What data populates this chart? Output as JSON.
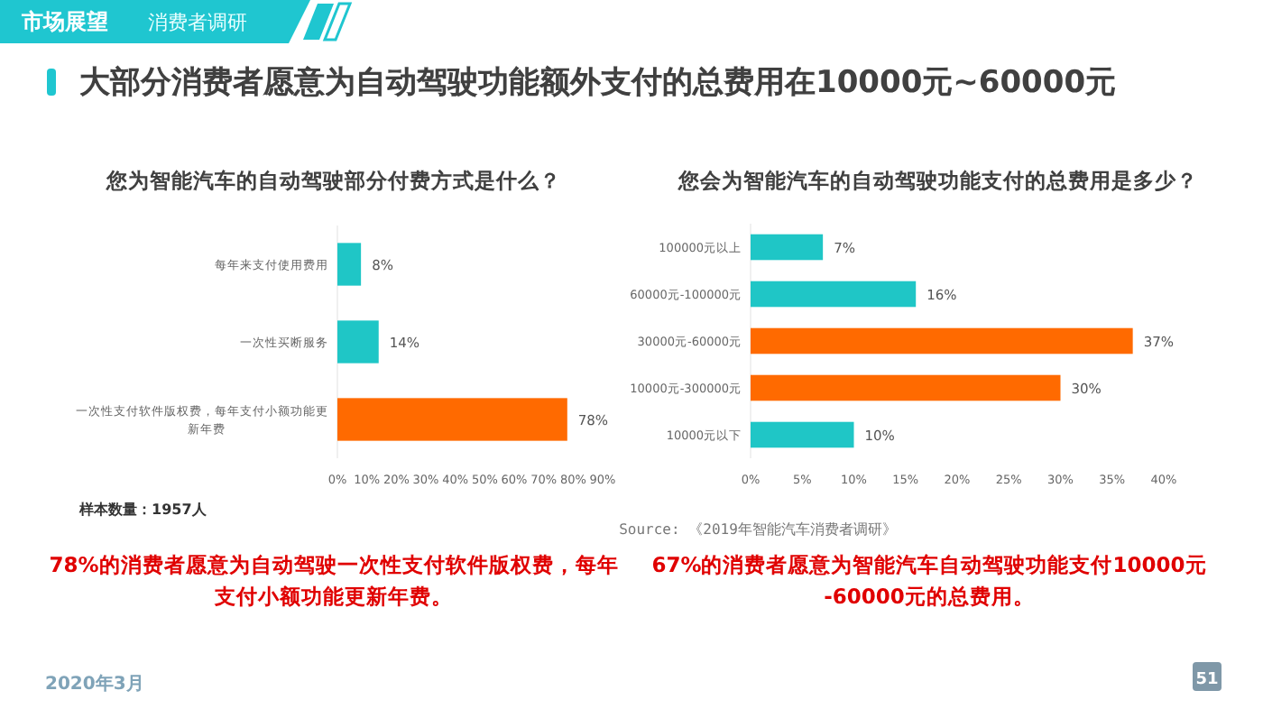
{
  "chart_data": [
    {
      "type": "other",
      "title": "大部分消费者愿意为自动驾驶功能额外支付的总费用在10000元~60000元",
      "annotations": [
        "市场展望",
        "消费者调研",
        "2020年3月",
        "51"
      ]
    },
    {
      "type": "bar",
      "orientation": "horizontal",
      "title": "您为智能汽车的自动驾驶部分付费方式是什么？",
      "categories": [
        "每年来支付使用费用",
        "一次性买断服务",
        "一次性支付软件版权费，每年支付小额功能更新年费"
      ],
      "values": [
        8,
        14,
        78
      ],
      "colors": [
        "#1fc6c6",
        "#1fc6c6",
        "#ff6a00"
      ],
      "value_labels": [
        "8%",
        "14%",
        "78%"
      ],
      "xlim": [
        0,
        90
      ],
      "xticks": [
        {
          "value": 0,
          "label": "0%"
        },
        {
          "value": 10,
          "label": "10%"
        },
        {
          "value": 20,
          "label": "20%"
        },
        {
          "value": 30,
          "label": "30%"
        },
        {
          "value": 40,
          "label": "40%"
        },
        {
          "value": 50,
          "label": "50%"
        },
        {
          "value": 60,
          "label": "60%"
        },
        {
          "value": 70,
          "label": "70%"
        },
        {
          "value": 80,
          "label": "80%"
        },
        {
          "value": 90,
          "label": "90%"
        }
      ],
      "grid": false,
      "annotations": [
        "样本数量：1957人",
        "78%的消费者愿意为自动驾驶一次性支付软件版权费，每年支付小额功能更新年费。"
      ]
    },
    {
      "type": "bar",
      "orientation": "horizontal",
      "title": "您会为智能汽车的自动驾驶功能支付的总费用是多少？",
      "categories": [
        "100000元以上",
        "60000元-100000元",
        "30000元-60000元",
        "10000元-300000元",
        "10000元以下"
      ],
      "values": [
        7,
        16,
        37,
        30,
        10
      ],
      "colors": [
        "#1fc6c6",
        "#1fc6c6",
        "#ff6a00",
        "#ff6a00",
        "#1fc6c6"
      ],
      "value_labels": [
        "7%",
        "16%",
        "37%",
        "30%",
        "10%"
      ],
      "xlim": [
        0,
        40
      ],
      "xticks": [
        {
          "value": 0,
          "label": "0%"
        },
        {
          "value": 5,
          "label": "5%"
        },
        {
          "value": 10,
          "label": "10%"
        },
        {
          "value": 15,
          "label": "15%"
        },
        {
          "value": 20,
          "label": "20%"
        },
        {
          "value": 25,
          "label": "25%"
        },
        {
          "value": 30,
          "label": "30%"
        },
        {
          "value": 35,
          "label": "35%"
        },
        {
          "value": 40,
          "label": "40%"
        }
      ],
      "grid": false,
      "annotations": [
        "Source: 《2019年智能汽车消费者调研》",
        "67%的消费者愿意为智能汽车自动驾驶功能支付10000元-60000元的总费用。"
      ]
    }
  ]
}
